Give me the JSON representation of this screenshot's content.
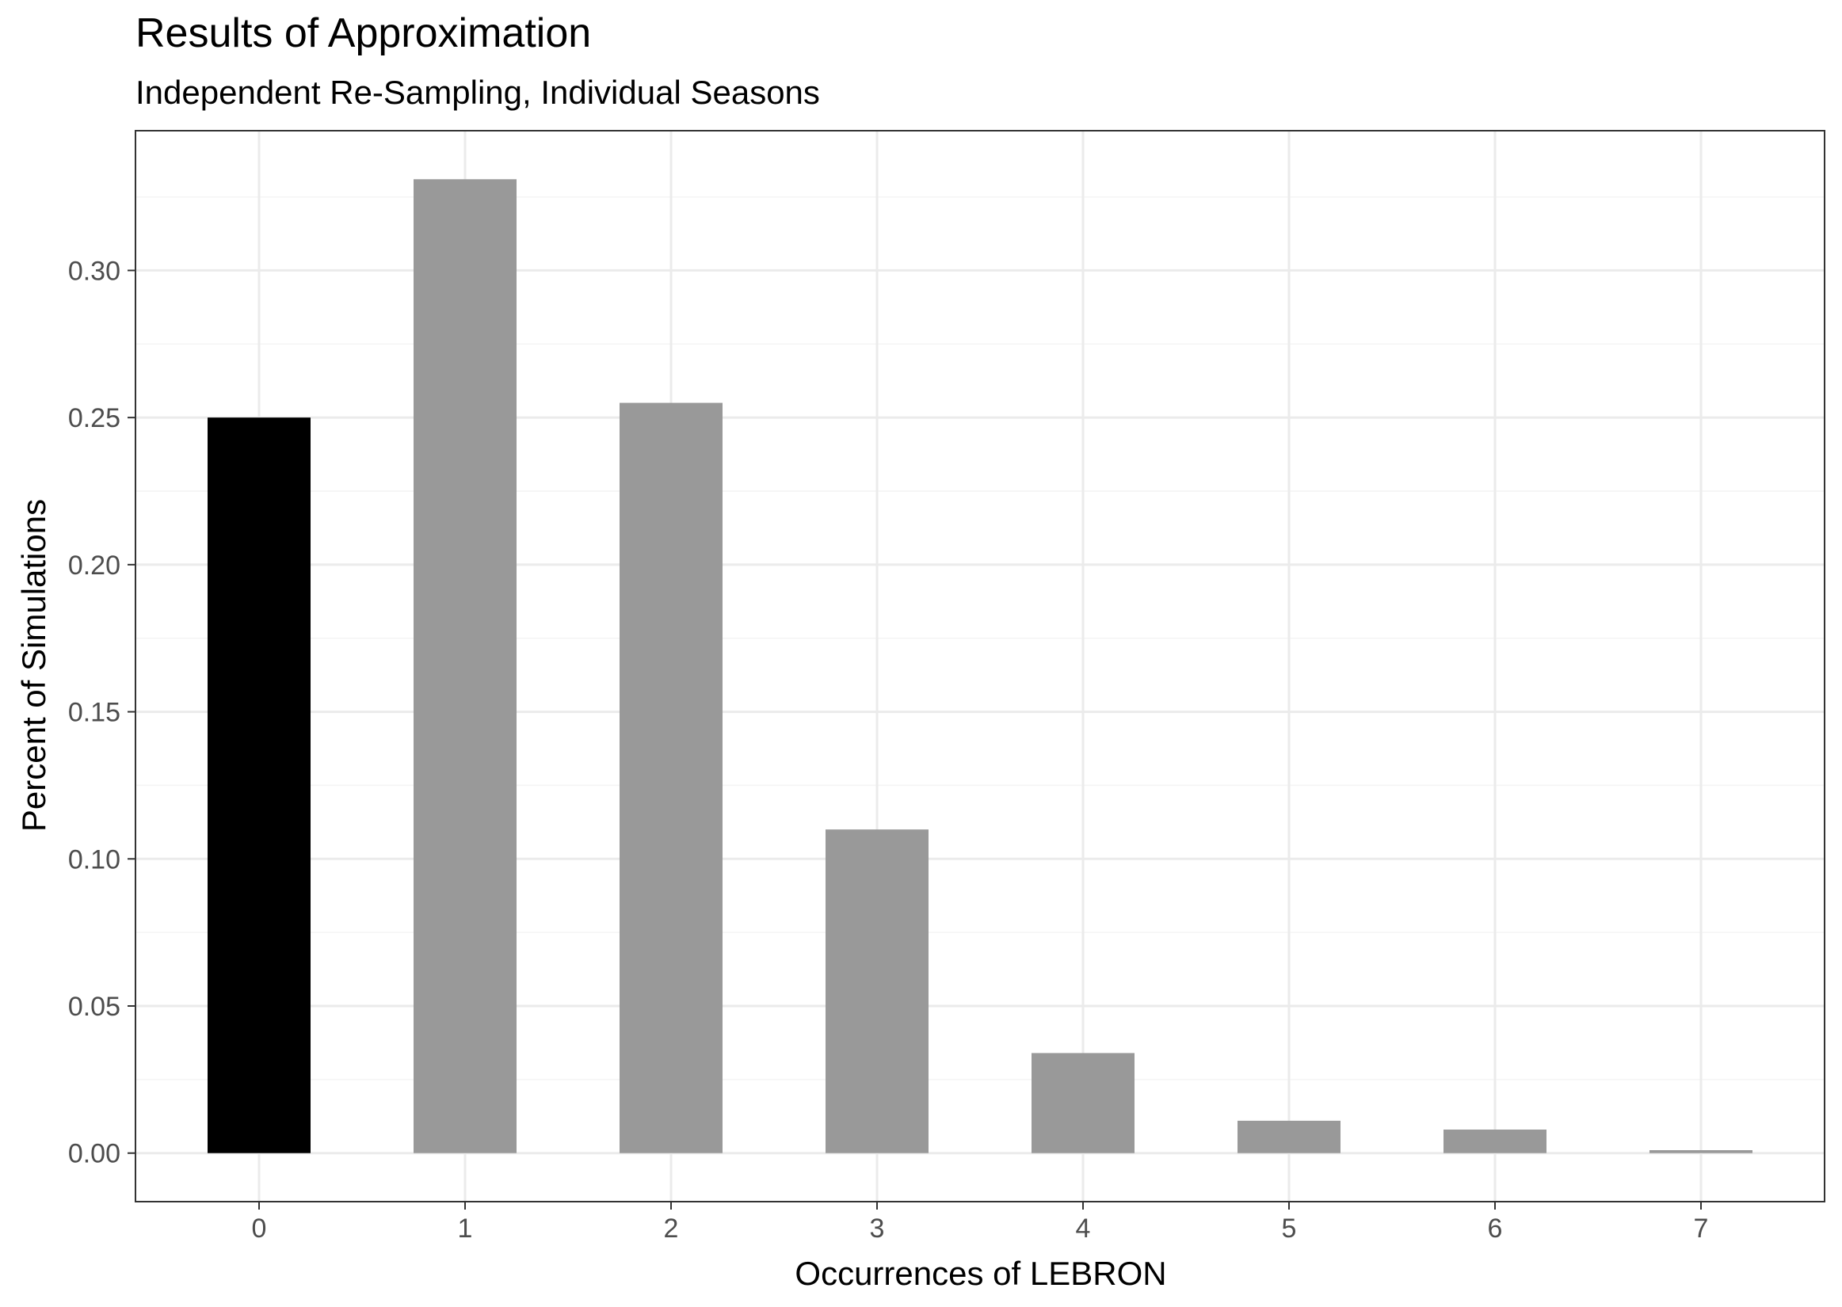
{
  "chart_data": {
    "type": "bar",
    "title": "Results of Approximation",
    "subtitle": "Independent Re-Sampling, Individual Seasons",
    "xlabel": "Occurrences of LEBRON",
    "ylabel": "Percent of Simulations",
    "categories": [
      "0",
      "1",
      "2",
      "3",
      "4",
      "5",
      "6",
      "7"
    ],
    "values": [
      0.25,
      0.331,
      0.255,
      0.11,
      0.034,
      0.011,
      0.008,
      0.001
    ],
    "y_ticks": [
      "0.00",
      "0.05",
      "0.10",
      "0.15",
      "0.20",
      "0.25",
      "0.30"
    ],
    "ylim": [
      -0.0165,
      0.3475
    ],
    "grid": true,
    "highlight_category": "0",
    "colors": {
      "highlight": "#000000",
      "bar": "#999999",
      "grid_major": "#ebebeb",
      "grid_minor": "#f4f4f4",
      "panel_border": "#333333"
    }
  }
}
